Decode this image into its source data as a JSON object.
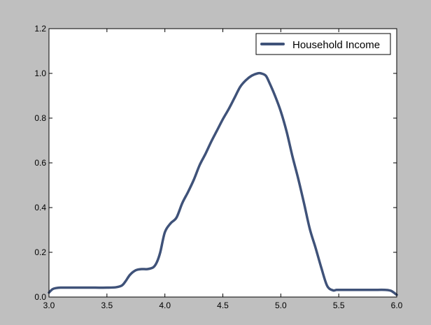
{
  "chart_data": {
    "type": "line",
    "title": "",
    "xlabel": "",
    "ylabel": "",
    "xlim": [
      3.0,
      6.0
    ],
    "ylim": [
      0.0,
      1.2
    ],
    "xticks": [
      3.0,
      3.5,
      4.0,
      4.5,
      5.0,
      5.5,
      6.0
    ],
    "yticks": [
      0.0,
      0.2,
      0.4,
      0.6,
      0.8,
      1.0,
      1.2
    ],
    "xtick_labels": [
      "3.0",
      "3.5",
      "4.0",
      "4.5",
      "5.0",
      "5.5",
      "6.0"
    ],
    "ytick_labels": [
      "0.0",
      "0.2",
      "0.4",
      "0.6",
      "0.8",
      "1.0",
      "1.2"
    ],
    "grid": false,
    "legend_position": "top-right",
    "background": "#bfbfbf",
    "plot_background": "#ffffff",
    "series": [
      {
        "name": "Household Income",
        "color": "#3f5279",
        "x": [
          3.0,
          3.03,
          3.06,
          3.1,
          3.2,
          3.3,
          3.4,
          3.5,
          3.58,
          3.63,
          3.66,
          3.7,
          3.75,
          3.8,
          3.85,
          3.9,
          3.93,
          3.96,
          4.0,
          4.05,
          4.1,
          4.15,
          4.2,
          4.25,
          4.3,
          4.35,
          4.4,
          4.45,
          4.5,
          4.55,
          4.6,
          4.65,
          4.7,
          4.75,
          4.8,
          4.83,
          4.87,
          4.9,
          4.95,
          5.0,
          5.05,
          5.1,
          5.15,
          5.2,
          5.25,
          5.3,
          5.35,
          5.4,
          5.45,
          5.48,
          5.52,
          5.6,
          5.7,
          5.8,
          5.9,
          5.95,
          6.0
        ],
        "y": [
          0.02,
          0.035,
          0.04,
          0.042,
          0.042,
          0.042,
          0.042,
          0.042,
          0.044,
          0.052,
          0.07,
          0.1,
          0.12,
          0.125,
          0.125,
          0.133,
          0.155,
          0.2,
          0.29,
          0.33,
          0.355,
          0.42,
          0.47,
          0.525,
          0.59,
          0.64,
          0.695,
          0.745,
          0.795,
          0.84,
          0.89,
          0.94,
          0.97,
          0.99,
          1.0,
          1.0,
          0.99,
          0.96,
          0.9,
          0.83,
          0.74,
          0.63,
          0.53,
          0.42,
          0.305,
          0.22,
          0.13,
          0.05,
          0.03,
          0.032,
          0.032,
          0.032,
          0.032,
          0.032,
          0.032,
          0.028,
          0.01
        ]
      }
    ]
  }
}
